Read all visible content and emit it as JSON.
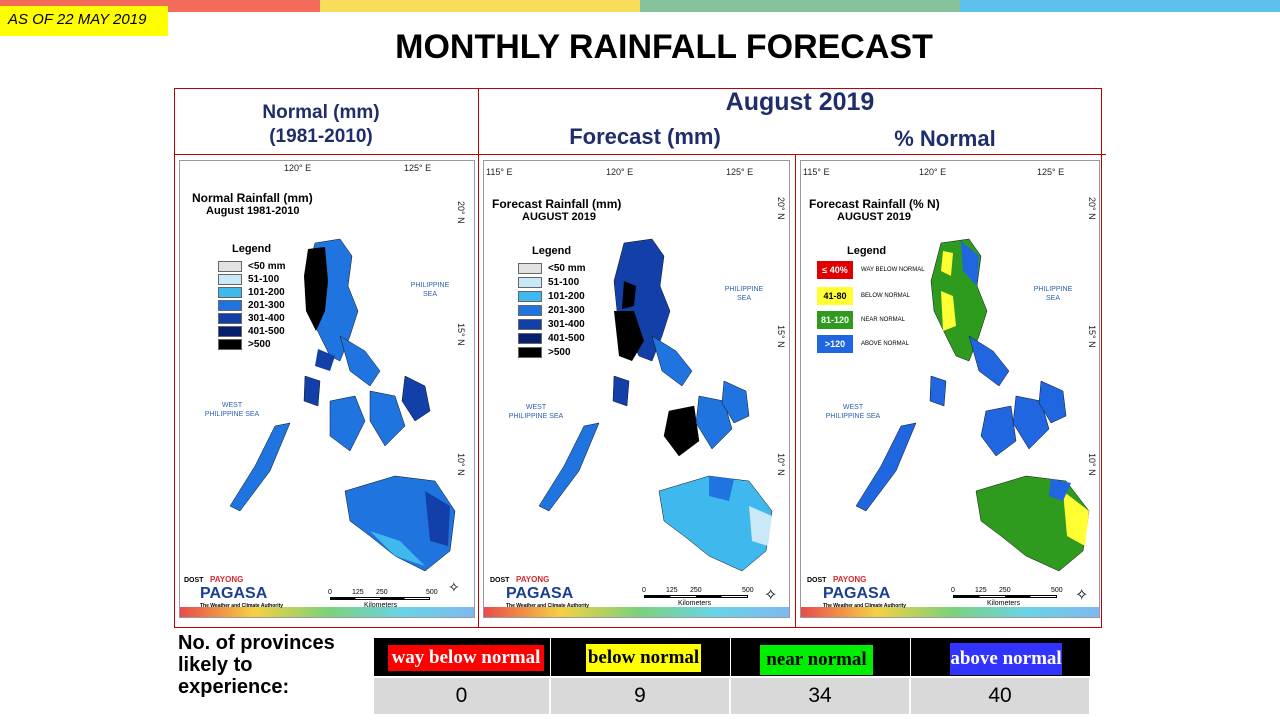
{
  "header": {
    "date_badge": "AS OF 22 MAY 2019",
    "title": "MONTHLY RAINFALL FORECAST",
    "stripe_colors": [
      "#f26b5b",
      "#f7dd5a",
      "#86c29a",
      "#5ec0ec"
    ]
  },
  "columns": {
    "normal_heading": "Normal (mm)",
    "normal_period": "(1981-2010)",
    "month_heading": "August 2019",
    "forecast_heading": "Forecast (mm)",
    "pct_heading": "% Normal"
  },
  "map_common": {
    "lon_labels": [
      "115° E",
      "120° E",
      "125° E"
    ],
    "lat_labels": [
      "20° N",
      "15° N",
      "10° N"
    ],
    "sea_east": "PHILIPPINE SEA",
    "sea_west": "WEST PHILIPPINE SEA",
    "legend_title": "Legend",
    "scale_ticks": [
      "0",
      "125",
      "250",
      "500"
    ],
    "scale_unit": "Kilometers",
    "logo_dost": "DOST",
    "logo_payong": "PAYONG",
    "logo_pagasa": "PAGASA",
    "logo_tagline": "The Weather and Climate Authority"
  },
  "maps": [
    {
      "id": "normal",
      "title": "Normal Rainfall (mm)",
      "subtitle": "August 1981-2010",
      "legend": [
        {
          "label": "<50 mm",
          "color": "#e2e2e2"
        },
        {
          "label": "51-100",
          "color": "#c9e8f8"
        },
        {
          "label": "101-200",
          "color": "#3fb8ee"
        },
        {
          "label": "201-300",
          "color": "#1f74e0"
        },
        {
          "label": "301-400",
          "color": "#1240a8"
        },
        {
          "label": "401-500",
          "color": "#081f6e"
        },
        {
          "label": ">500",
          "color": "#000000"
        }
      ]
    },
    {
      "id": "forecast",
      "title": "Forecast Rainfall (mm)",
      "subtitle": "AUGUST 2019",
      "legend": [
        {
          "label": "<50 mm",
          "color": "#e2e2e2"
        },
        {
          "label": "51-100",
          "color": "#c9e8f8"
        },
        {
          "label": "101-200",
          "color": "#3fb8ee"
        },
        {
          "label": "201-300",
          "color": "#1f74e0"
        },
        {
          "label": "301-400",
          "color": "#1240a8"
        },
        {
          "label": "401-500",
          "color": "#081f6e"
        },
        {
          "label": ">500",
          "color": "#000000"
        }
      ]
    },
    {
      "id": "percent",
      "title": "Forecast Rainfall (% N)",
      "subtitle": "AUGUST 2019",
      "legend": [
        {
          "swatch": "≤ 40%",
          "label": "WAY BELOW NORMAL",
          "color": "#e00000",
          "text_color": "#ffffff"
        },
        {
          "swatch": "41-80",
          "label": "BELOW NORMAL",
          "color": "#ffff33",
          "text_color": "#000000"
        },
        {
          "swatch": "81-120",
          "label": "NEAR NORMAL",
          "color": "#2e9a1e",
          "text_color": "#ffffff"
        },
        {
          "swatch": ">120",
          "label": "ABOVE NORMAL",
          "color": "#1f66e0",
          "text_color": "#ffffff"
        }
      ]
    }
  ],
  "summary": {
    "label": "No. of provinces likely to experience:",
    "categories": [
      {
        "label": "way below normal",
        "count": "0",
        "bg": "#ff0000",
        "fg": "#ffffff"
      },
      {
        "label": "below normal",
        "count": "9",
        "bg": "#ffff00",
        "fg": "#000000"
      },
      {
        "label": "near normal",
        "count": "34",
        "bg": "#00ee00",
        "fg": "#000000"
      },
      {
        "label": "above normal",
        "count": "40",
        "bg": "#3333ff",
        "fg": "#ffffff"
      }
    ]
  }
}
